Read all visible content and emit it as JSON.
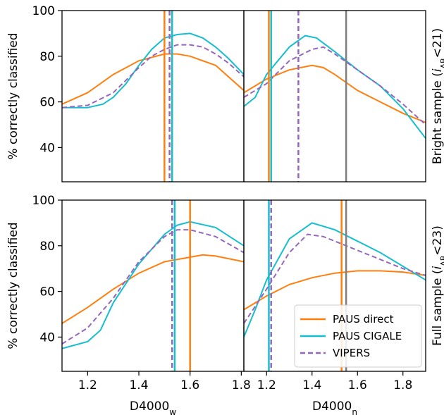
{
  "chart_data": [
    {
      "type": "line",
      "ylabel": "% correctly classified",
      "side_label": {
        "main": "Bright sample (",
        "italic": "i",
        "sub": "AB",
        "end": "<21)"
      },
      "xlim": [
        1.1,
        1.81
      ],
      "ylim": [
        25,
        100
      ],
      "yticks": [
        40,
        60,
        80,
        100
      ],
      "series": [
        {
          "color": "#ff7f0e",
          "dash": false,
          "x": [
            1.1,
            1.2,
            1.3,
            1.4,
            1.5,
            1.55,
            1.6,
            1.7,
            1.81
          ],
          "values": [
            59,
            64,
            72,
            78,
            81,
            81,
            80,
            76,
            65
          ]
        },
        {
          "color": "#17becf",
          "dash": false,
          "x": [
            1.1,
            1.2,
            1.26,
            1.3,
            1.35,
            1.4,
            1.45,
            1.5,
            1.55,
            1.6,
            1.65,
            1.7,
            1.75,
            1.81
          ],
          "values": [
            57.5,
            57.5,
            59,
            62,
            68,
            76,
            83,
            88,
            89.5,
            90,
            88,
            84,
            79,
            72
          ]
        },
        {
          "color": "#9467bd",
          "dash": true,
          "x": [
            1.1,
            1.2,
            1.3,
            1.4,
            1.45,
            1.5,
            1.55,
            1.6,
            1.65,
            1.7,
            1.75,
            1.81
          ],
          "values": [
            57.5,
            58.5,
            64,
            75,
            80,
            83,
            85,
            85,
            84,
            81,
            77,
            71
          ]
        }
      ],
      "vlines": [
        {
          "color": "#ff7f0e",
          "x": 1.5,
          "dash": false
        },
        {
          "color": "#17becf",
          "x": 1.53,
          "dash": false
        },
        {
          "color": "#9467bd",
          "x": 1.52,
          "dash": true
        }
      ]
    },
    {
      "type": "line",
      "side_label": {
        "main": "Bright sample (",
        "italic": "i",
        "sub": "AB",
        "end": "<21)"
      },
      "xlim": [
        1.1,
        1.9
      ],
      "ylim": [
        25,
        100
      ],
      "series": [
        {
          "color": "#ff7f0e",
          "dash": false,
          "x": [
            1.1,
            1.2,
            1.3,
            1.4,
            1.45,
            1.5,
            1.6,
            1.7,
            1.8,
            1.9
          ],
          "values": [
            64,
            70,
            74,
            76,
            75,
            72,
            65,
            60,
            55,
            51
          ]
        },
        {
          "color": "#17becf",
          "dash": false,
          "x": [
            1.1,
            1.15,
            1.2,
            1.3,
            1.37,
            1.42,
            1.5,
            1.6,
            1.7,
            1.8,
            1.9
          ],
          "values": [
            58,
            62,
            72,
            84,
            89,
            88,
            82,
            74,
            67,
            57,
            44
          ]
        },
        {
          "color": "#9467bd",
          "dash": true,
          "x": [
            1.1,
            1.2,
            1.3,
            1.4,
            1.45,
            1.5,
            1.6,
            1.7,
            1.8,
            1.9
          ],
          "values": [
            62,
            68,
            78,
            83,
            84,
            81,
            74,
            67,
            59,
            50
          ]
        }
      ],
      "vlines": [
        {
          "color": "#ff7f0e",
          "x": 1.21,
          "dash": false
        },
        {
          "color": "#17becf",
          "x": 1.22,
          "dash": false
        },
        {
          "color": "#9467bd",
          "x": 1.34,
          "dash": true
        },
        {
          "color": "#7f7f7f",
          "x": 1.55,
          "dash": false
        }
      ]
    },
    {
      "type": "line",
      "ylabel": "% correctly classified",
      "xlabel": {
        "main": "D4000",
        "sub": "w"
      },
      "xlim": [
        1.1,
        1.81
      ],
      "ylim": [
        25,
        100
      ],
      "yticks": [
        40,
        60,
        80,
        100
      ],
      "xticks": [
        1.2,
        1.4,
        1.6,
        1.8
      ],
      "series": [
        {
          "color": "#ff7f0e",
          "dash": false,
          "x": [
            1.1,
            1.2,
            1.3,
            1.4,
            1.5,
            1.6,
            1.65,
            1.7,
            1.81
          ],
          "values": [
            46,
            53,
            61,
            68,
            73,
            75,
            76,
            75.5,
            73
          ]
        },
        {
          "color": "#17becf",
          "dash": false,
          "x": [
            1.1,
            1.2,
            1.25,
            1.3,
            1.4,
            1.5,
            1.55,
            1.6,
            1.7,
            1.81
          ],
          "values": [
            35,
            38,
            43,
            55,
            72,
            85,
            89,
            90.5,
            88,
            80
          ]
        },
        {
          "color": "#9467bd",
          "dash": true,
          "x": [
            1.1,
            1.2,
            1.3,
            1.4,
            1.5,
            1.55,
            1.6,
            1.7,
            1.81
          ],
          "values": [
            37,
            44,
            57,
            73,
            84,
            87,
            87,
            84,
            77
          ]
        }
      ],
      "vlines": [
        {
          "color": "#9467bd",
          "x": 1.53,
          "dash": true
        },
        {
          "color": "#17becf",
          "x": 1.54,
          "dash": false
        },
        {
          "color": "#ff7f0e",
          "x": 1.6,
          "dash": false
        }
      ]
    },
    {
      "type": "line",
      "side_label": {
        "main": "Full sample (",
        "italic": "i",
        "sub": "AB",
        "end": "<23)"
      },
      "xlabel": {
        "main": "D4000",
        "sub": "n"
      },
      "xlim": [
        1.1,
        1.9
      ],
      "ylim": [
        25,
        100
      ],
      "xticks": [
        1.2,
        1.4,
        1.6,
        1.8
      ],
      "legend": "lower right",
      "series": [
        {
          "name": "PAUS direct",
          "color": "#ff7f0e",
          "dash": false,
          "x": [
            1.1,
            1.2,
            1.3,
            1.4,
            1.5,
            1.6,
            1.7,
            1.8,
            1.9
          ],
          "values": [
            52,
            58,
            63,
            66,
            68,
            69,
            69,
            68.5,
            67
          ]
        },
        {
          "name": "PAUS CIGALE",
          "color": "#17becf",
          "dash": false,
          "x": [
            1.1,
            1.15,
            1.2,
            1.3,
            1.4,
            1.5,
            1.6,
            1.7,
            1.8,
            1.9
          ],
          "values": [
            40,
            52,
            65,
            83,
            90,
            87,
            82,
            77,
            71,
            65
          ]
        },
        {
          "name": "VIPERS",
          "color": "#9467bd",
          "dash": true,
          "x": [
            1.1,
            1.2,
            1.3,
            1.38,
            1.45,
            1.5,
            1.6,
            1.7,
            1.8,
            1.9
          ],
          "values": [
            46,
            61,
            77,
            85,
            84,
            82,
            78,
            74,
            70,
            67
          ]
        }
      ],
      "vlines": [
        {
          "color": "#17becf",
          "x": 1.21,
          "dash": false
        },
        {
          "color": "#9467bd",
          "x": 1.22,
          "dash": true
        },
        {
          "color": "#ff7f0e",
          "x": 1.53,
          "dash": false
        },
        {
          "color": "#7f7f7f",
          "x": 1.55,
          "dash": false
        }
      ]
    }
  ]
}
